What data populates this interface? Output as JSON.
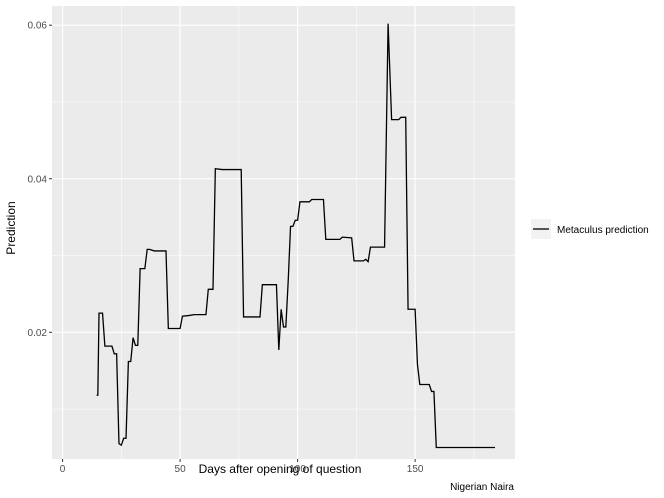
{
  "caption": "Nigerian Naira",
  "colors": {
    "panel": "#ebebeb",
    "grid_major": "#ffffff",
    "line": "#000000",
    "tick": "#333333"
  },
  "chart_data": {
    "type": "line",
    "title": "",
    "xlabel": "Days after opening of question",
    "ylabel": "Prediction",
    "xlim": [
      -4.5,
      192.5
    ],
    "ylim": [
      0.0035,
      0.0625
    ],
    "x_ticks": [
      0,
      50,
      100,
      150
    ],
    "x_tick_labels": [
      "0",
      "50",
      "100",
      "150"
    ],
    "y_ticks": [
      0.02,
      0.04,
      0.06
    ],
    "y_tick_labels": [
      "0.02",
      "0.04",
      "0.06"
    ],
    "grid": true,
    "legend_position": "right",
    "series": [
      {
        "name": "Metaculus prediction",
        "color": "#000000",
        "points": [
          [
            14.5,
            0.0118
          ],
          [
            15.0,
            0.0118
          ],
          [
            15.5,
            0.0225
          ],
          [
            17.0,
            0.0225
          ],
          [
            18.0,
            0.0182
          ],
          [
            21.0,
            0.0182
          ],
          [
            22.0,
            0.0172
          ],
          [
            23.0,
            0.0172
          ],
          [
            24.0,
            0.0055
          ],
          [
            25.0,
            0.0053
          ],
          [
            26.0,
            0.0062
          ],
          [
            27.0,
            0.0062
          ],
          [
            28.0,
            0.0162
          ],
          [
            29.0,
            0.0162
          ],
          [
            30.0,
            0.0193
          ],
          [
            31.0,
            0.0183
          ],
          [
            32.0,
            0.0183
          ],
          [
            33.0,
            0.0283
          ],
          [
            35.0,
            0.0283
          ],
          [
            36.0,
            0.0308
          ],
          [
            37.0,
            0.0308
          ],
          [
            39.0,
            0.0306
          ],
          [
            44.0,
            0.0306
          ],
          [
            45.0,
            0.0205
          ],
          [
            50.0,
            0.0205
          ],
          [
            51.0,
            0.0221
          ],
          [
            54.0,
            0.0222
          ],
          [
            56.0,
            0.0223
          ],
          [
            61.0,
            0.0223
          ],
          [
            62.0,
            0.0256
          ],
          [
            64.0,
            0.0256
          ],
          [
            65.0,
            0.0413
          ],
          [
            68.0,
            0.0412
          ],
          [
            76.0,
            0.0412
          ],
          [
            77.0,
            0.022
          ],
          [
            84.0,
            0.022
          ],
          [
            85.0,
            0.0262
          ],
          [
            91.0,
            0.0262
          ],
          [
            92.0,
            0.0177
          ],
          [
            93.0,
            0.023
          ],
          [
            94.0,
            0.0207
          ],
          [
            95.0,
            0.0207
          ],
          [
            96.0,
            0.0267
          ],
          [
            97.0,
            0.0338
          ],
          [
            98.0,
            0.0338
          ],
          [
            99.0,
            0.0346
          ],
          [
            100.0,
            0.0346
          ],
          [
            101.0,
            0.037
          ],
          [
            105.0,
            0.037
          ],
          [
            106.0,
            0.0373
          ],
          [
            111.0,
            0.0373
          ],
          [
            112.0,
            0.0321
          ],
          [
            118.0,
            0.0321
          ],
          [
            119.0,
            0.0324
          ],
          [
            123.0,
            0.0323
          ],
          [
            124.0,
            0.0293
          ],
          [
            128.0,
            0.0293
          ],
          [
            129.0,
            0.0295
          ],
          [
            130.0,
            0.0292
          ],
          [
            131.0,
            0.0311
          ],
          [
            137.0,
            0.0311
          ],
          [
            138.5,
            0.0602
          ],
          [
            140.0,
            0.0477
          ],
          [
            143.0,
            0.0477
          ],
          [
            144.0,
            0.048
          ],
          [
            146.0,
            0.048
          ],
          [
            147.0,
            0.023
          ],
          [
            150.0,
            0.023
          ],
          [
            151.0,
            0.0158
          ],
          [
            152.0,
            0.0132
          ],
          [
            156.0,
            0.0132
          ],
          [
            157.0,
            0.0123
          ],
          [
            158.0,
            0.0123
          ],
          [
            159.0,
            0.005
          ],
          [
            184.0,
            0.005
          ]
        ]
      }
    ]
  }
}
